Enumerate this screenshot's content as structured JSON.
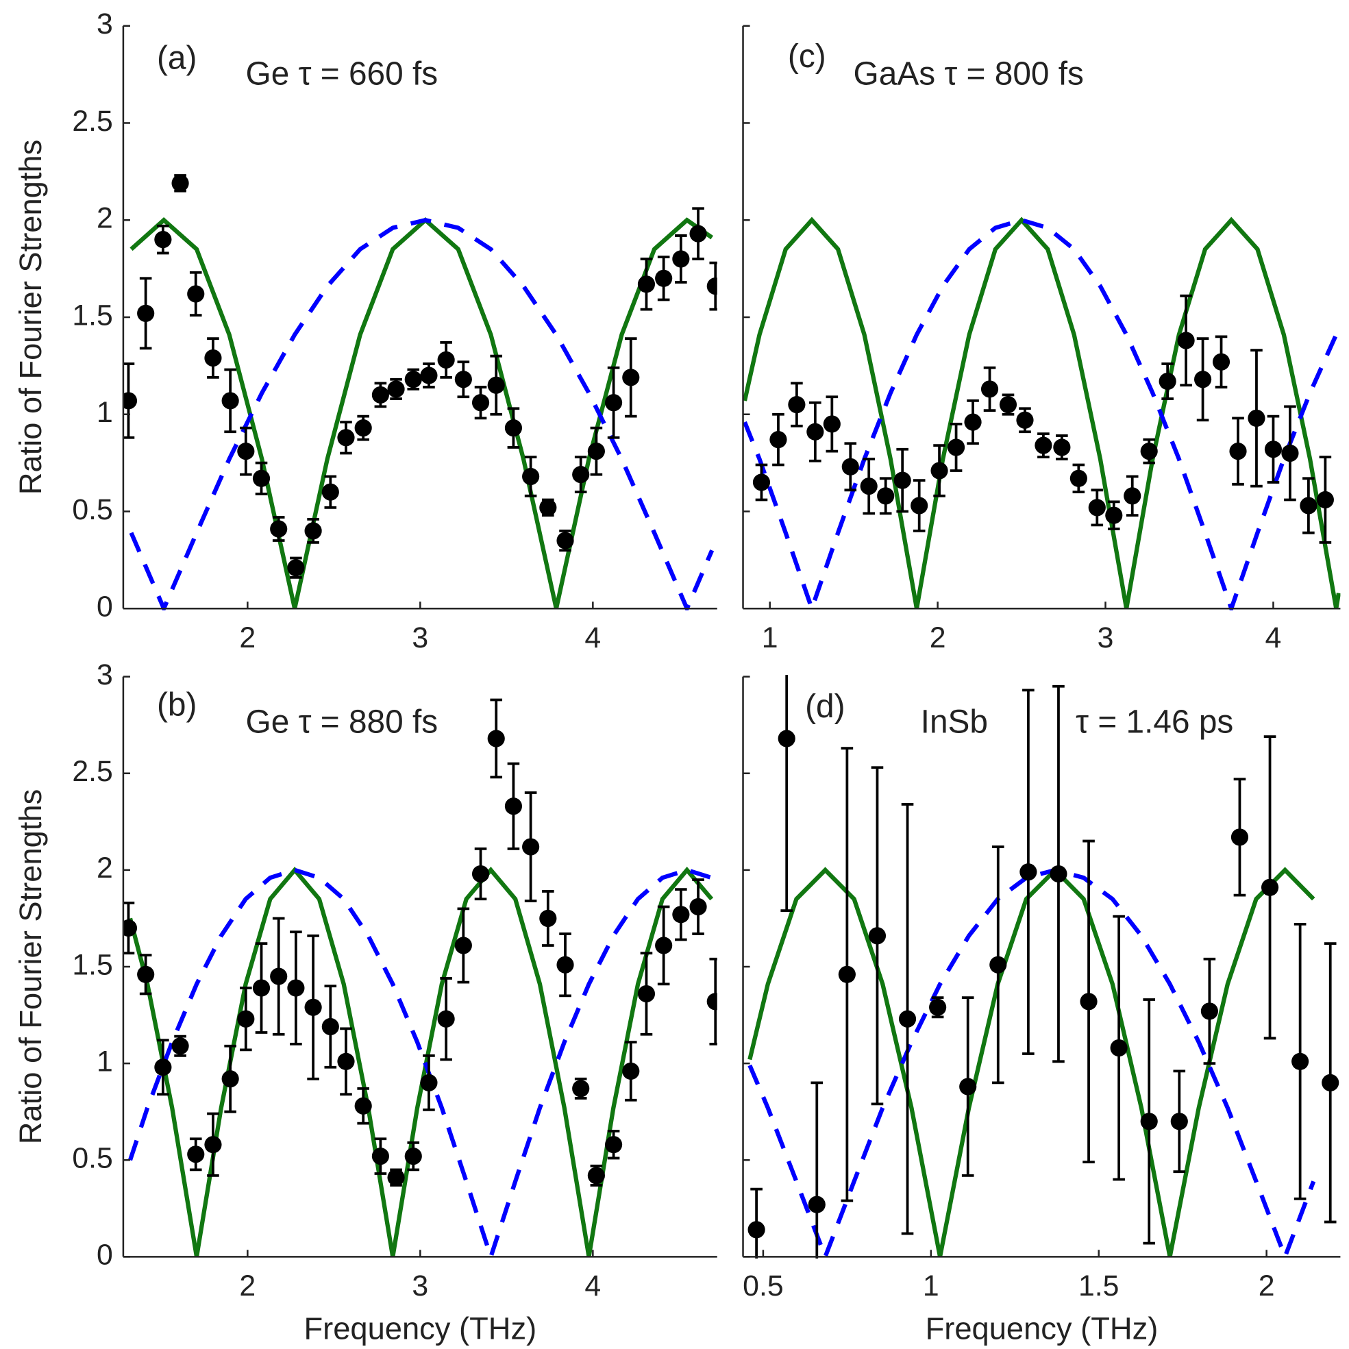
{
  "chart_data": [
    {
      "type": "scatter",
      "annotations": [
        "(a)",
        "Ge τ = 660 fs"
      ],
      "ylabel": "Ratio of Fourier Strengths",
      "xlim": [
        1.28,
        4.72
      ],
      "ylim": [
        0,
        3
      ],
      "xticks": [
        2,
        3,
        4
      ],
      "yticks": [
        0,
        0.5,
        1,
        1.5,
        2,
        2.5,
        3
      ],
      "ytick_labels": true,
      "points": {
        "color": "#000000",
        "x": [
          1.31,
          1.41,
          1.51,
          1.61,
          1.7,
          1.8,
          1.9,
          1.99,
          2.08,
          2.18,
          2.28,
          2.38,
          2.48,
          2.57,
          2.67,
          2.77,
          2.86,
          2.96,
          3.05,
          3.15,
          3.25,
          3.35,
          3.44,
          3.54,
          3.64,
          3.74,
          3.84,
          3.93,
          4.02,
          4.12,
          4.22,
          4.31,
          4.41,
          4.51,
          4.61,
          4.71
        ],
        "values": [
          1.07,
          1.52,
          1.9,
          2.19,
          1.62,
          1.29,
          1.07,
          0.81,
          0.67,
          0.41,
          0.21,
          0.4,
          0.6,
          0.88,
          0.93,
          1.1,
          1.13,
          1.18,
          1.2,
          1.28,
          1.18,
          1.06,
          1.15,
          0.93,
          0.68,
          0.52,
          0.35,
          0.69,
          0.81,
          1.06,
          1.19,
          1.67,
          1.7,
          1.8,
          1.93,
          1.66
        ],
        "errors": [
          0.19,
          0.18,
          0.07,
          0.04,
          0.11,
          0.1,
          0.16,
          0.12,
          0.08,
          0.06,
          0.05,
          0.06,
          0.08,
          0.08,
          0.06,
          0.06,
          0.05,
          0.05,
          0.06,
          0.09,
          0.09,
          0.08,
          0.15,
          0.1,
          0.1,
          0.04,
          0.05,
          0.09,
          0.12,
          0.18,
          0.2,
          0.13,
          0.11,
          0.12,
          0.13,
          0.12
        ]
      },
      "curve_x": [
        1.326,
        1.515,
        1.705,
        1.894,
        2.083,
        2.273,
        2.462,
        2.652,
        2.841,
        3.03,
        3.22,
        3.409,
        3.598,
        3.788,
        3.977,
        4.167,
        4.356,
        4.545,
        4.69
      ],
      "curves": [
        {
          "color": "#117711",
          "dashed": false,
          "values": [
            1.85,
            2,
            1.85,
            1.41,
            0.77,
            0,
            0.77,
            1.41,
            1.85,
            2,
            1.85,
            1.41,
            0.77,
            0,
            0.77,
            1.41,
            1.85,
            2,
            1.91
          ]
        },
        {
          "color": "#0000ff",
          "dashed": true,
          "values": [
            0.39,
            0,
            0.39,
            0.77,
            1.11,
            1.41,
            1.66,
            1.85,
            1.96,
            2,
            1.96,
            1.85,
            1.66,
            1.41,
            1.11,
            0.77,
            0.39,
            0,
            0.3
          ]
        }
      ]
    },
    {
      "type": "scatter",
      "annotations": [
        "(b)",
        "Ge τ = 880 fs"
      ],
      "ylabel": "Ratio of Fourier Strengths",
      "xlabel": "Frequency (THz)",
      "xlim": [
        1.28,
        4.72
      ],
      "ylim": [
        0,
        3
      ],
      "xticks": [
        2,
        3,
        4
      ],
      "yticks": [
        0,
        0.5,
        1,
        1.5,
        2,
        2.5,
        3
      ],
      "ytick_labels": true,
      "points": {
        "color": "#000000",
        "x": [
          1.31,
          1.41,
          1.51,
          1.61,
          1.7,
          1.8,
          1.9,
          1.99,
          2.08,
          2.18,
          2.28,
          2.38,
          2.48,
          2.57,
          2.67,
          2.77,
          2.86,
          2.96,
          3.05,
          3.15,
          3.25,
          3.35,
          3.44,
          3.54,
          3.64,
          3.74,
          3.84,
          3.93,
          4.02,
          4.12,
          4.22,
          4.31,
          4.41,
          4.51,
          4.61,
          4.71
        ],
        "values": [
          1.7,
          1.46,
          0.98,
          1.09,
          0.53,
          0.58,
          0.92,
          1.23,
          1.39,
          1.45,
          1.39,
          1.29,
          1.19,
          1.01,
          0.78,
          0.52,
          0.41,
          0.52,
          0.9,
          1.23,
          1.61,
          1.98,
          2.68,
          2.33,
          2.12,
          1.75,
          1.51,
          0.87,
          0.42,
          0.58,
          0.96,
          1.36,
          1.61,
          1.77,
          1.81,
          1.32
        ],
        "errors": [
          0.13,
          0.1,
          0.14,
          0.05,
          0.08,
          0.16,
          0.17,
          0.16,
          0.23,
          0.3,
          0.29,
          0.37,
          0.21,
          0.17,
          0.09,
          0.09,
          0.04,
          0.07,
          0.14,
          0.21,
          0.19,
          0.13,
          0.2,
          0.22,
          0.28,
          0.14,
          0.16,
          0.05,
          0.05,
          0.07,
          0.15,
          0.21,
          0.2,
          0.13,
          0.14,
          0.22
        ]
      },
      "curve_x": [
        1.32,
        1.42,
        1.563,
        1.705,
        1.847,
        1.989,
        2.131,
        2.273,
        2.415,
        2.557,
        2.699,
        2.841,
        2.983,
        3.125,
        3.267,
        3.409,
        3.551,
        3.693,
        3.835,
        3.977,
        4.119,
        4.261,
        4.403,
        4.545,
        4.688
      ],
      "curves": [
        {
          "color": "#117711",
          "dashed": false,
          "values": [
            1.75,
            1.41,
            0.77,
            0,
            0.77,
            1.41,
            1.85,
            2,
            1.85,
            1.41,
            0.77,
            0,
            0.77,
            1.41,
            1.85,
            2,
            1.85,
            1.41,
            0.77,
            0,
            0.77,
            1.41,
            1.85,
            2,
            1.85
          ]
        },
        {
          "color": "#0000ff",
          "dashed": true,
          "values": [
            0.5,
            0.77,
            1.11,
            1.41,
            1.66,
            1.85,
            1.96,
            2,
            1.96,
            1.85,
            1.66,
            1.41,
            1.11,
            0.77,
            0.39,
            0,
            0.39,
            0.77,
            1.11,
            1.41,
            1.66,
            1.85,
            1.96,
            2,
            1.96
          ]
        }
      ]
    },
    {
      "type": "scatter",
      "annotations": [
        "(c)",
        "GaAs τ = 800 fs"
      ],
      "xlim": [
        0.84,
        4.4
      ],
      "ylim": [
        0,
        3
      ],
      "xticks": [
        1,
        2,
        3,
        4
      ],
      "yticks": [
        0,
        0.5,
        1,
        1.5,
        2,
        2.5,
        3
      ],
      "ytick_labels": false,
      "points": {
        "color": "#000000",
        "x": [
          0.95,
          1.05,
          1.16,
          1.27,
          1.37,
          1.48,
          1.59,
          1.69,
          1.79,
          1.89,
          2.01,
          2.11,
          2.21,
          2.31,
          2.42,
          2.52,
          2.63,
          2.74,
          2.84,
          2.95,
          3.05,
          3.16,
          3.26,
          3.37,
          3.48,
          3.58,
          3.69,
          3.79,
          3.9,
          4.0,
          4.1,
          4.21,
          4.31
        ],
        "values": [
          0.65,
          0.87,
          1.05,
          0.91,
          0.95,
          0.73,
          0.63,
          0.58,
          0.66,
          0.53,
          0.71,
          0.83,
          0.96,
          1.13,
          1.05,
          0.97,
          0.84,
          0.83,
          0.67,
          0.52,
          0.48,
          0.58,
          0.81,
          1.17,
          1.38,
          1.18,
          1.27,
          0.81,
          0.98,
          0.82,
          0.8,
          0.53,
          0.56
        ],
        "errors": [
          0.09,
          0.13,
          0.11,
          0.15,
          0.14,
          0.12,
          0.14,
          0.09,
          0.16,
          0.13,
          0.13,
          0.12,
          0.11,
          0.11,
          0.05,
          0.06,
          0.06,
          0.06,
          0.07,
          0.09,
          0.07,
          0.1,
          0.06,
          0.09,
          0.23,
          0.21,
          0.13,
          0.17,
          0.35,
          0.17,
          0.24,
          0.14,
          0.22
        ]
      },
      "curve_x": [
        0.85,
        0.938,
        1.094,
        1.25,
        1.406,
        1.563,
        1.719,
        1.875,
        2.031,
        2.188,
        2.344,
        2.5,
        2.656,
        2.813,
        2.969,
        3.125,
        3.281,
        3.438,
        3.594,
        3.75,
        3.906,
        4.063,
        4.219,
        4.375,
        4.39
      ],
      "curves": [
        {
          "color": "#117711",
          "dashed": false,
          "values": [
            1.07,
            1.41,
            1.85,
            2,
            1.85,
            1.41,
            0.77,
            0,
            0.77,
            1.41,
            1.85,
            2,
            1.85,
            1.41,
            0.77,
            0,
            0.77,
            1.41,
            1.85,
            2,
            1.85,
            1.41,
            0.77,
            0,
            0.08
          ]
        },
        {
          "color": "#0000ff",
          "dashed": true,
          "values": [
            0.96,
            0.77,
            0.39,
            0,
            0.39,
            0.77,
            1.11,
            1.41,
            1.66,
            1.85,
            1.96,
            2,
            1.96,
            1.85,
            1.66,
            1.41,
            1.11,
            0.77,
            0.39,
            0,
            0.39,
            0.77,
            1.11,
            1.41,
            1.45
          ]
        }
      ]
    },
    {
      "type": "scatter",
      "annotations": [
        "(d)",
        "InSb",
        "τ = 1.46 ps"
      ],
      "xlabel": "Frequency (THz)",
      "xlim": [
        0.44,
        2.22
      ],
      "ylim": [
        0,
        3
      ],
      "xticks": [
        0.5,
        1,
        1.5,
        2
      ],
      "yticks": [
        0,
        0.5,
        1,
        1.5,
        2,
        2.5,
        3
      ],
      "ytick_labels": false,
      "points": {
        "color": "#000000",
        "x": [
          0.48,
          0.57,
          0.66,
          0.75,
          0.84,
          0.93,
          1.02,
          1.11,
          1.2,
          1.29,
          1.38,
          1.47,
          1.56,
          1.65,
          1.74,
          1.83,
          1.92,
          2.01,
          2.1,
          2.19
        ],
        "values": [
          0.14,
          2.68,
          0.27,
          1.46,
          1.66,
          1.23,
          1.29,
          0.88,
          1.51,
          1.99,
          1.98,
          1.32,
          1.08,
          0.7,
          0.7,
          1.27,
          2.17,
          1.91,
          1.01,
          0.9
        ],
        "errors": [
          0.21,
          0.89,
          0.63,
          1.17,
          0.87,
          1.11,
          0.05,
          0.46,
          0.61,
          0.94,
          0.97,
          0.83,
          0.68,
          0.63,
          0.26,
          0.27,
          0.3,
          0.78,
          0.71,
          0.72
        ]
      },
      "curve_x": [
        0.46,
        0.514,
        0.599,
        0.685,
        0.771,
        0.856,
        0.942,
        1.027,
        1.113,
        1.199,
        1.284,
        1.37,
        1.455,
        1.541,
        1.627,
        1.712,
        1.798,
        1.884,
        1.969,
        2.055,
        2.14
      ],
      "curves": [
        {
          "color": "#117711",
          "dashed": false,
          "values": [
            1.02,
            1.41,
            1.85,
            2,
            1.85,
            1.41,
            0.77,
            0,
            0.77,
            1.41,
            1.85,
            2,
            1.85,
            1.41,
            0.77,
            0,
            0.77,
            1.41,
            1.85,
            2,
            1.85
          ]
        },
        {
          "color": "#0000ff",
          "dashed": true,
          "values": [
            0.99,
            0.77,
            0.39,
            0,
            0.39,
            0.77,
            1.11,
            1.41,
            1.66,
            1.85,
            1.96,
            2,
            1.96,
            1.85,
            1.66,
            1.41,
            1.11,
            0.77,
            0.39,
            0,
            0.39
          ]
        }
      ]
    }
  ]
}
